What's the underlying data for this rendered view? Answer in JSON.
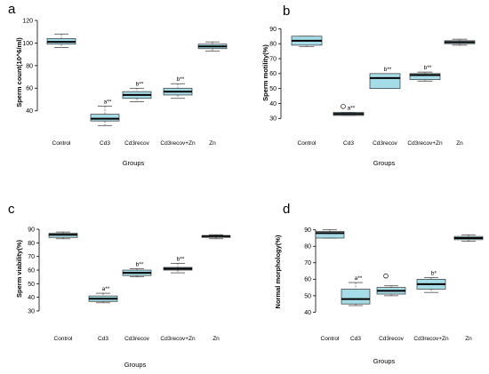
{
  "chart_data": [
    {
      "panel": "a",
      "type": "box",
      "ylabel": "Sperm count(10^6/ml)",
      "xlabel": "Groups",
      "ylim": [
        28,
        120
      ],
      "yticks": [
        40,
        60,
        80,
        100,
        120
      ],
      "categories": [
        "Control",
        "Cd3",
        "Cd3recov",
        "Cd3recov+Zn",
        "Zn"
      ],
      "boxes": [
        {
          "min": 96,
          "q1": 99,
          "median": 101,
          "q3": 104,
          "max": 108,
          "label": ""
        },
        {
          "min": 27,
          "q1": 31,
          "median": 33,
          "q3": 37,
          "max": 44,
          "label": "a**"
        },
        {
          "min": 48,
          "q1": 51,
          "median": 54,
          "q3": 57,
          "max": 60,
          "label": "b**"
        },
        {
          "min": 51,
          "q1": 54,
          "median": 57,
          "q3": 60,
          "max": 64,
          "label": "b**"
        },
        {
          "min": 93,
          "q1": 95,
          "median": 97,
          "q3": 99,
          "max": 101,
          "label": ""
        }
      ],
      "outliers": []
    },
    {
      "panel": "b",
      "type": "box",
      "ylabel": "Sperm motility(%)",
      "xlabel": "Groups",
      "ylim": [
        29,
        92
      ],
      "yticks": [
        30,
        40,
        50,
        60,
        70,
        80,
        90
      ],
      "categories": [
        "Control",
        "Cd3",
        "Cd3recov",
        "Cd3recov+Zn",
        "Zn"
      ],
      "boxes": [
        {
          "min": 78,
          "q1": 79,
          "median": 82,
          "q3": 85,
          "max": 85,
          "label": ""
        },
        {
          "min": 32,
          "q1": 32,
          "median": 33,
          "q3": 34,
          "max": 34,
          "label": "a**"
        },
        {
          "min": 50,
          "q1": 50,
          "median": 57,
          "q3": 60,
          "max": 60,
          "label": "b**"
        },
        {
          "min": 55,
          "q1": 56,
          "median": 59,
          "q3": 60,
          "max": 61,
          "label": "b**"
        },
        {
          "min": 79,
          "q1": 80,
          "median": 81,
          "q3": 82,
          "max": 83,
          "label": ""
        }
      ],
      "outliers": [
        {
          "category": "Cd3",
          "value": 38
        }
      ]
    },
    {
      "panel": "c",
      "type": "box",
      "ylabel": "Sperm viability(%)",
      "xlabel": "Groups",
      "ylim": [
        30,
        92
      ],
      "yticks": [
        30,
        40,
        50,
        60,
        70,
        80,
        90
      ],
      "categories": [
        "Control",
        "Cd3",
        "Cd3recov",
        "Cd3recov+Zn",
        "Zn"
      ],
      "boxes": [
        {
          "min": 83,
          "q1": 84,
          "median": 86,
          "q3": 87,
          "max": 88,
          "label": ""
        },
        {
          "min": 36,
          "q1": 37,
          "median": 39,
          "q3": 41,
          "max": 43,
          "label": "a**"
        },
        {
          "min": 55,
          "q1": 56,
          "median": 58,
          "q3": 60,
          "max": 61,
          "label": "b**"
        },
        {
          "min": 58,
          "q1": 60,
          "median": 61,
          "q3": 62,
          "max": 65,
          "label": "b**"
        },
        {
          "min": 83,
          "q1": 84,
          "median": 85,
          "q3": 85,
          "max": 86,
          "label": ""
        }
      ],
      "outliers": []
    },
    {
      "panel": "d",
      "type": "box",
      "ylabel": "Normal morphology(%)",
      "xlabel": "Groups",
      "ylim": [
        37,
        92
      ],
      "yticks": [
        40,
        50,
        60,
        70,
        80,
        90
      ],
      "categories": [
        "Control",
        "Cd3",
        "Cd3recov",
        "Cd3recov+Zn",
        "Zn"
      ],
      "boxes": [
        {
          "min": 85,
          "q1": 85,
          "median": 88,
          "q3": 89,
          "max": 90,
          "label": ""
        },
        {
          "min": 44,
          "q1": 45,
          "median": 48,
          "q3": 54,
          "max": 58,
          "label": "a**"
        },
        {
          "min": 50,
          "q1": 51,
          "median": 53,
          "q3": 55,
          "max": 56,
          "label": ""
        },
        {
          "min": 52,
          "q1": 54,
          "median": 57,
          "q3": 60,
          "max": 61,
          "label": "b*"
        },
        {
          "min": 83,
          "q1": 84,
          "median": 85,
          "q3": 86,
          "max": 87,
          "label": ""
        }
      ],
      "outliers": [
        {
          "category": "Cd3recov",
          "value": 62
        }
      ]
    }
  ],
  "colors": {
    "box_fill": "#a6dce7",
    "stroke": "#333333"
  }
}
